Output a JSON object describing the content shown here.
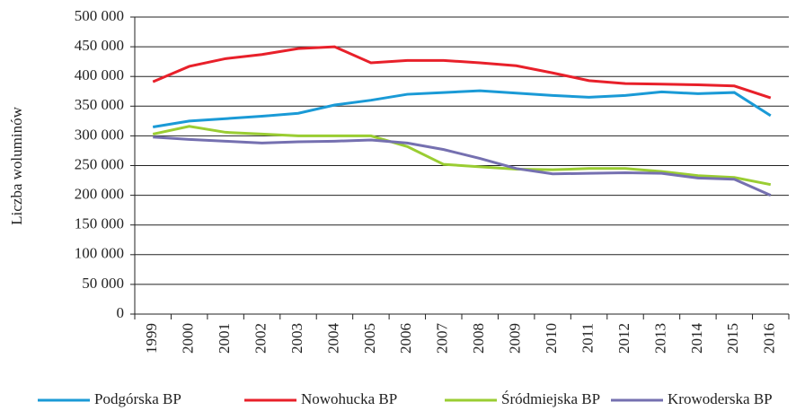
{
  "chart_data": {
    "type": "line",
    "y_label": "Liczba woluminów",
    "categories": [
      "1999",
      "2000",
      "2001",
      "2002",
      "2003",
      "2004",
      "2005",
      "2006",
      "2007",
      "2008",
      "2009",
      "2010",
      "2011",
      "2012",
      "2013",
      "2014",
      "2015",
      "2016"
    ],
    "series": [
      {
        "name": "Podgórska BP",
        "color": "#1a9ad6",
        "values": [
          315000,
          325000,
          329000,
          333000,
          338000,
          352000,
          360000,
          370000,
          373000,
          376000,
          372000,
          368000,
          365000,
          368000,
          374000,
          371000,
          373000,
          334000
        ]
      },
      {
        "name": "Nowohucka BP",
        "color": "#e8202a",
        "values": [
          391000,
          417000,
          430000,
          437000,
          447000,
          450000,
          423000,
          427000,
          427000,
          423000,
          418000,
          406000,
          393000,
          388000,
          387000,
          386000,
          384000,
          364000
        ]
      },
      {
        "name": "Śródmiejska BP",
        "color": "#9acd32",
        "values": [
          303000,
          316000,
          306000,
          303000,
          300000,
          300000,
          300000,
          282000,
          252000,
          248000,
          244000,
          243000,
          245000,
          245000,
          240000,
          233000,
          230000,
          218000
        ]
      },
      {
        "name": "Krowoderska BP",
        "color": "#7570b0",
        "values": [
          298000,
          294000,
          291000,
          288000,
          290000,
          291000,
          293000,
          288000,
          277000,
          262000,
          245000,
          236000,
          237000,
          238000,
          237000,
          229000,
          227000,
          200000
        ]
      }
    ],
    "ylim": [
      0,
      500000
    ],
    "yticks": [
      0,
      {
        "value": 50000,
        "label": "50 000"
      },
      {
        "value": 100000,
        "label": "100 000"
      },
      {
        "value": 150000,
        "label": "150 000"
      },
      {
        "value": 200000,
        "label": "200 000"
      },
      {
        "value": 250000,
        "label": "250 000"
      },
      {
        "value": 300000,
        "label": "300 000"
      },
      {
        "value": 350000,
        "label": "350 000"
      },
      {
        "value": 400000,
        "label": "400 000"
      },
      {
        "value": 450000,
        "label": "450 000"
      },
      {
        "value": 500000,
        "label": "500 000"
      }
    ],
    "grid": true,
    "legend": "bottom"
  }
}
